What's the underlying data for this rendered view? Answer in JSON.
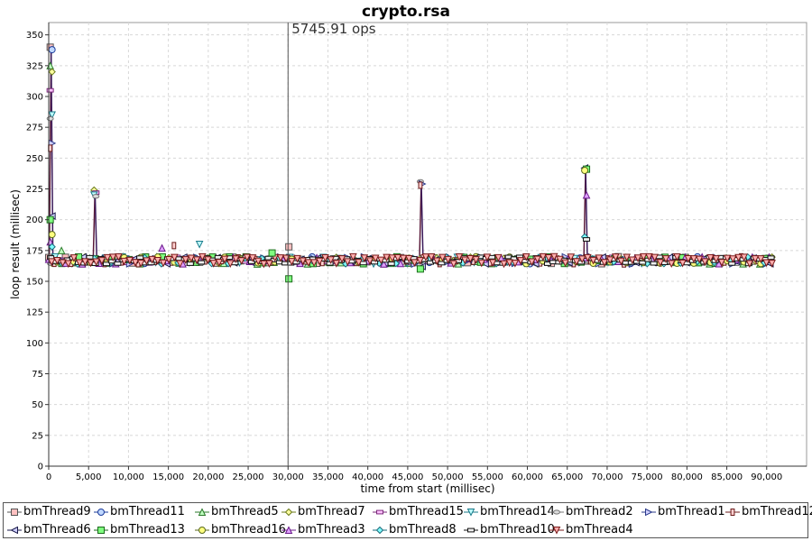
{
  "chart_data": {
    "type": "line",
    "title": "crypto.rsa",
    "xlabel": "time from start (millisec)",
    "ylabel": "loop result (millisec)",
    "xlim": [
      0,
      95000
    ],
    "ylim": [
      0,
      360
    ],
    "xticks": [
      0,
      5000,
      10000,
      15000,
      20000,
      25000,
      30000,
      35000,
      40000,
      45000,
      50000,
      55000,
      60000,
      65000,
      70000,
      75000,
      80000,
      85000,
      90000
    ],
    "xtick_labels": [
      "0",
      "5,000",
      "10,000",
      "15,000",
      "20,000",
      "25,000",
      "30,000",
      "35,000",
      "40,000",
      "45,000",
      "50,000",
      "55,000",
      "60,000",
      "65,000",
      "70,000",
      "75,000",
      "80,000",
      "85,000",
      "90,000"
    ],
    "yticks": [
      0,
      25,
      50,
      75,
      100,
      125,
      150,
      175,
      200,
      225,
      250,
      275,
      300,
      325,
      350
    ],
    "grid": true,
    "legend_position": "bottom",
    "annotation": {
      "x": 30000,
      "text": "5745.91 ops"
    },
    "baseline": 167,
    "x_end": 90500,
    "spikes": [
      {
        "x": 300,
        "values": [
          340,
          338,
          325,
          320,
          305,
          285,
          282,
          262,
          258,
          203,
          200,
          188,
          182,
          178
        ]
      },
      {
        "x": 5800,
        "values": [
          224,
          222,
          220,
          219
        ]
      },
      {
        "x": 46700,
        "values": [
          231,
          229,
          228,
          162,
          160
        ]
      },
      {
        "x": 67300,
        "values": [
          242,
          241,
          240,
          220,
          186,
          184
        ]
      }
    ],
    "outliers": [
      {
        "x": 30100,
        "y": 152,
        "series": "bmThread13"
      },
      {
        "x": 30100,
        "y": 178,
        "series": "bmThread9"
      },
      {
        "x": 14200,
        "y": 177,
        "series": "bmThread3"
      },
      {
        "x": 18900,
        "y": 180,
        "series": "bmThread14"
      },
      {
        "x": 28000,
        "y": 173,
        "series": "bmThread13"
      },
      {
        "x": 15700,
        "y": 179,
        "series": "bmThread12"
      },
      {
        "x": 1600,
        "y": 175,
        "series": "bmThread5"
      }
    ],
    "series": [
      {
        "name": "bmThread9",
        "color": "#555555",
        "fill": "#ffc0c0",
        "marker": "square"
      },
      {
        "name": "bmThread11",
        "color": "#1a3a9a",
        "fill": "#c0d8ff",
        "marker": "circle"
      },
      {
        "name": "bmThread5",
        "color": "#2a7a2a",
        "fill": "#c0ffc0",
        "marker": "triangle-up"
      },
      {
        "name": "bmThread7",
        "color": "#6a7a1a",
        "fill": "#ffffa0",
        "marker": "diamond"
      },
      {
        "name": "bmThread15",
        "color": "#7a2a7a",
        "fill": "#ffc0ff",
        "marker": "rect-h"
      },
      {
        "name": "bmThread14",
        "color": "#1a7a8a",
        "fill": "#c0ffff",
        "marker": "triangle-down"
      },
      {
        "name": "bmThread2",
        "color": "#777777",
        "fill": "#dddddd",
        "marker": "ellipse"
      },
      {
        "name": "bmThread1",
        "color": "#2a3a8a",
        "fill": "#d0d0ff",
        "marker": "triangle-right"
      },
      {
        "name": "bmThread12",
        "color": "#6a1a1a",
        "fill": "#ffd0d0",
        "marker": "rect-v"
      },
      {
        "name": "bmThread6",
        "color": "#1a1a4a",
        "fill": "#d0d0ff",
        "marker": "triangle-left"
      },
      {
        "name": "bmThread13",
        "color": "#1a6a1a",
        "fill": "#80ff80",
        "marker": "square"
      },
      {
        "name": "bmThread16",
        "color": "#5a6a1a",
        "fill": "#ffff80",
        "marker": "circle"
      },
      {
        "name": "bmThread3",
        "color": "#6a1a8a",
        "fill": "#e0a0ff",
        "marker": "triangle-up"
      },
      {
        "name": "bmThread8",
        "color": "#1a6a7a",
        "fill": "#80ffff",
        "marker": "diamond"
      },
      {
        "name": "bmThread10",
        "color": "#111111",
        "fill": "#eeeeee",
        "marker": "rect-h"
      },
      {
        "name": "bmThread4",
        "color": "#7a1a1a",
        "fill": "#ffb0b0",
        "marker": "triangle-down"
      }
    ]
  }
}
